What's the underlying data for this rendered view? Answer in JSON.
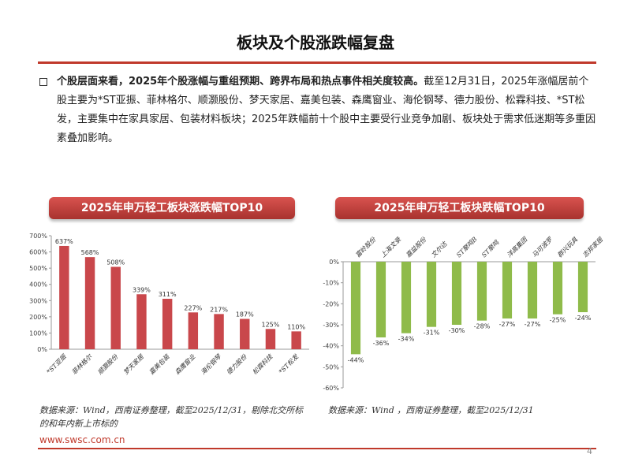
{
  "page": {
    "title": "板块及个股涨跌幅复盘",
    "paragraph_bold": "个股层面来看，2025年个股涨幅与重组预期、跨界布局和热点事件相关度较高。",
    "paragraph_rest": "截至12月31日，2025年涨幅居前个股主要为*ST亚振、菲林格尔、顺灏股份、梦天家居、嘉美包装、森鹰窗业、海伦钢琴、德力股份、松霖科技、*ST松发，主要集中在家具家居、包装材料板块；2025年跌幅前十个股中主要受行业竞争加剧、板块处于需求低迷期等多重因素叠加影响。",
    "footer_url": "www.swsc.com.cn",
    "page_number": "4",
    "colors": {
      "accent": "#c0392b",
      "bar_up": "#c9474b",
      "bar_down": "#8fbb4a"
    }
  },
  "chart_data": [
    {
      "type": "bar",
      "title": "2025年申万轻工板块涨跌幅TOP10",
      "categories": [
        "*ST亚振",
        "菲林格尔",
        "顺灏股份",
        "梦天家居",
        "嘉美包装",
        "森鹰窗业",
        "海伦钢琴",
        "德力股份",
        "松霖科技",
        "*ST松发"
      ],
      "values": [
        637,
        568,
        508,
        339,
        311,
        227,
        217,
        187,
        125,
        110
      ],
      "data_labels": [
        "637%",
        "568%",
        "508%",
        "339%",
        "311%",
        "227%",
        "217%",
        "187%",
        "125%",
        "110%"
      ],
      "y_ticks": [
        "0%",
        "100%",
        "200%",
        "300%",
        "400%",
        "500%",
        "600%",
        "700%"
      ],
      "ylim": [
        0,
        700
      ],
      "grid": false,
      "source": "数据来源：Wind，西南证券整理，截至2025/12/31，剔除北交所标的和年内新上市标的"
    },
    {
      "type": "bar",
      "title": "2025年申万轻工板块跌幅TOP10",
      "categories": [
        "富岭股份",
        "上海文录",
        "嘉益股份",
        "文尔达",
        "ST聚鸣B",
        "ST聚鸣",
        "洋高集团",
        "马可波罗",
        "群兴玩具",
        "志邦家居"
      ],
      "values": [
        -44,
        -36,
        -34,
        -31,
        -30,
        -28,
        -27,
        -27,
        -25,
        -24
      ],
      "data_labels": [
        "-44%",
        "-36%",
        "-34%",
        "-31%",
        "-30%",
        "-28%",
        "-27%",
        "-27%",
        "-25%",
        "-24%"
      ],
      "y_ticks": [
        "0%",
        "-10%",
        "-20%",
        "-30%",
        "-40%",
        "-50%",
        "-60%"
      ],
      "ylim": [
        -60,
        0
      ],
      "grid": false,
      "source": "数据来源：Wind ，西南证券整理，截至2025/12/31"
    }
  ]
}
